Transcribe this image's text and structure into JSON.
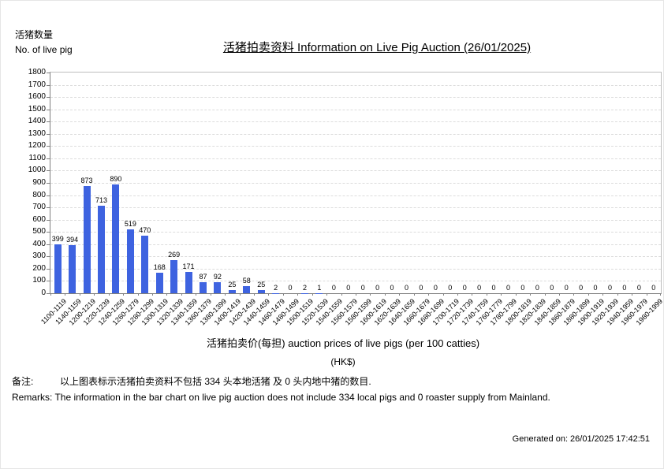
{
  "chart_data": {
    "type": "bar",
    "title": "活猪拍卖资料 Information on Live Pig Auction (26/01/2025)",
    "ylabel_zh": "活猪数量",
    "ylabel_en": "No. of live pig",
    "xlabel": "活猪拍卖价(每担) auction prices of live pigs (per 100 catties)",
    "xlabel_unit": "(HK$)",
    "categories": [
      "1100-1119",
      "1140-1159",
      "1200-1219",
      "1220-1239",
      "1240-1259",
      "1260-1279",
      "1280-1299",
      "1300-1319",
      "1320-1339",
      "1340-1359",
      "1360-1379",
      "1380-1399",
      "1400-1419",
      "1420-1439",
      "1440-1459",
      "1460-1479",
      "1480-1499",
      "1500-1519",
      "1520-1539",
      "1540-1559",
      "1560-1579",
      "1580-1599",
      "1600-1619",
      "1620-1639",
      "1640-1659",
      "1660-1679",
      "1680-1699",
      "1700-1719",
      "1720-1739",
      "1740-1759",
      "1760-1779",
      "1780-1799",
      "1800-1819",
      "1820-1839",
      "1840-1859",
      "1860-1879",
      "1880-1899",
      "1900-1919",
      "1920-1939",
      "1940-1959",
      "1960-1979",
      "1980-1999"
    ],
    "values": [
      399,
      394,
      873,
      713,
      890,
      519,
      470,
      168,
      269,
      171,
      87,
      92,
      25,
      58,
      25,
      2,
      0,
      2,
      1,
      0,
      0,
      0,
      0,
      0,
      0,
      0,
      0,
      0,
      0,
      0,
      0,
      0,
      0,
      0,
      0,
      0,
      0,
      0,
      0,
      0,
      0,
      0
    ],
    "ylim": [
      0,
      1800
    ],
    "ytick_step": 100,
    "bar_color": "#3E63E0",
    "grid": "horizontal-dashed",
    "legend": "none"
  },
  "remarks": {
    "label_zh": "备注:",
    "text_zh": "以上图表标示活猪拍卖资料不包括 334 头本地活猪 及 0 头内地中猪的数目.",
    "text_en": "Remarks: The information in the bar chart on live pig auction does not include 334 local pigs and 0 roaster supply from Mainland."
  },
  "footer": {
    "generated_on": "Generated on: 26/01/2025 17:42:51"
  }
}
